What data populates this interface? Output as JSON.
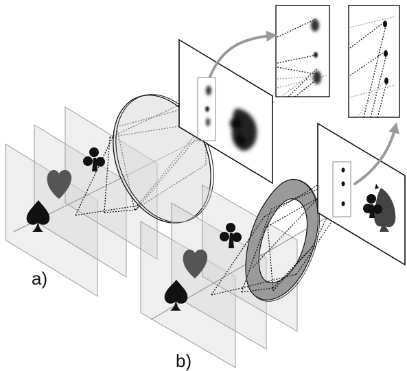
{
  "labels": {
    "panel_a": "a)",
    "panel_b": "b)"
  },
  "colors": {
    "symbol_dark": "#111111",
    "symbol_gray": "#555555",
    "annulus": "#9a9a9a",
    "arrow": "#9a9a9a"
  },
  "symbols": [
    "spade",
    "heart",
    "club"
  ]
}
